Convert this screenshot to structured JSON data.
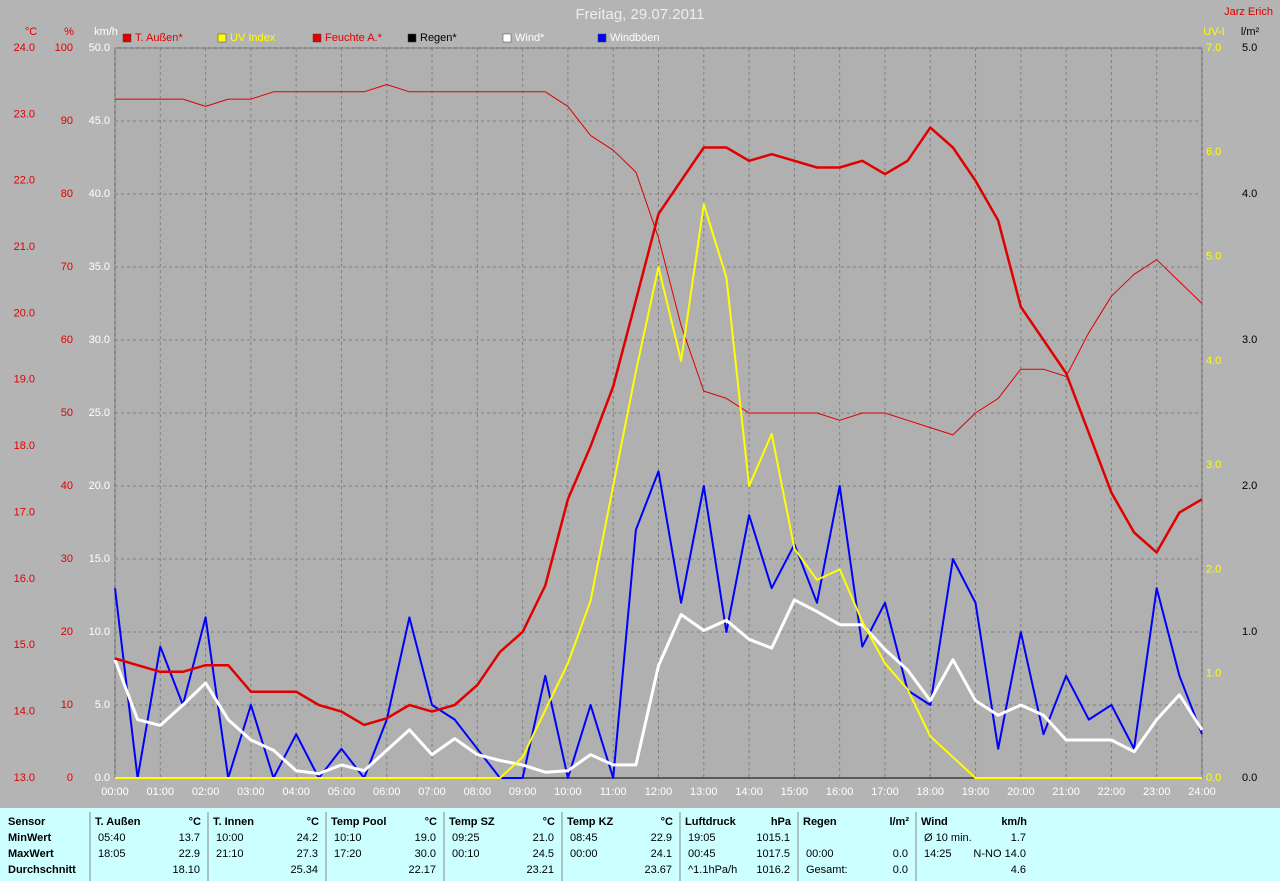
{
  "chart_data": {
    "type": "line",
    "title": "Freitag, 29.07.2011",
    "author": "Jarz Erich",
    "xlim": [
      0,
      24
    ],
    "xticks": [
      {
        "value": 0,
        "label": "00:00"
      },
      {
        "value": 1,
        "label": "01:00"
      },
      {
        "value": 2,
        "label": "02:00"
      },
      {
        "value": 3,
        "label": "03:00"
      },
      {
        "value": 4,
        "label": "04:00"
      },
      {
        "value": 5,
        "label": "05:00"
      },
      {
        "value": 6,
        "label": "06:00"
      },
      {
        "value": 7,
        "label": "07:00"
      },
      {
        "value": 8,
        "label": "08:00"
      },
      {
        "value": 9,
        "label": "09:00"
      },
      {
        "value": 10,
        "label": "10:00"
      },
      {
        "value": 11,
        "label": "11:00"
      },
      {
        "value": 12,
        "label": "12:00"
      },
      {
        "value": 13,
        "label": "13:00"
      },
      {
        "value": 14,
        "label": "14:00"
      },
      {
        "value": 15,
        "label": "15:00"
      },
      {
        "value": 16,
        "label": "16:00"
      },
      {
        "value": 17,
        "label": "17:00"
      },
      {
        "value": 18,
        "label": "18:00"
      },
      {
        "value": 19,
        "label": "19:00"
      },
      {
        "value": 20,
        "label": "20:00"
      },
      {
        "value": 21,
        "label": "21:00"
      },
      {
        "value": 22,
        "label": "22:00"
      },
      {
        "value": 23,
        "label": "23:00"
      },
      {
        "value": 24,
        "label": "24:00"
      }
    ],
    "grid": true,
    "grid_axis": 2,
    "axes": [
      {
        "label": "°C",
        "color": "#e00000",
        "side": "left",
        "lim": [
          13,
          24
        ],
        "ticks": [
          {
            "value": 13,
            "label": "13.0"
          },
          {
            "value": 14,
            "label": "14.0"
          },
          {
            "value": 15,
            "label": "15.0"
          },
          {
            "value": 16,
            "label": "16.0"
          },
          {
            "value": 17,
            "label": "17.0"
          },
          {
            "value": 18,
            "label": "18.0"
          },
          {
            "value": 19,
            "label": "19.0"
          },
          {
            "value": 20,
            "label": "20.0"
          },
          {
            "value": 21,
            "label": "21.0"
          },
          {
            "value": 22,
            "label": "22.0"
          },
          {
            "value": 23,
            "label": "23.0"
          },
          {
            "value": 24,
            "label": "24.0"
          }
        ]
      },
      {
        "label": "%",
        "color": "#e00000",
        "side": "left",
        "lim": [
          0,
          100
        ],
        "ticks": [
          0,
          10,
          20,
          30,
          40,
          50,
          60,
          70,
          80,
          90,
          100
        ]
      },
      {
        "label": "km/h",
        "color": "#ffffff",
        "side": "left",
        "lim": [
          0,
          50
        ],
        "ticks": [
          {
            "value": 0,
            "label": "0.0"
          },
          {
            "value": 5,
            "label": "5.0"
          },
          {
            "value": 10,
            "label": "10.0"
          },
          {
            "value": 15,
            "label": "15.0"
          },
          {
            "value": 20,
            "label": "20.0"
          },
          {
            "value": 25,
            "label": "25.0"
          },
          {
            "value": 30,
            "label": "30.0"
          },
          {
            "value": 35,
            "label": "35.0"
          },
          {
            "value": 40,
            "label": "40.0"
          },
          {
            "value": 45,
            "label": "45.0"
          },
          {
            "value": 50,
            "label": "50.0"
          }
        ]
      },
      {
        "label": "UV-I",
        "color": "#ffff00",
        "side": "right",
        "lim": [
          0,
          7
        ],
        "ticks": [
          {
            "value": 0,
            "label": "0.0"
          },
          {
            "value": 1,
            "label": "1.0"
          },
          {
            "value": 2,
            "label": "2.0"
          },
          {
            "value": 3,
            "label": "3.0"
          },
          {
            "value": 4,
            "label": "4.0"
          },
          {
            "value": 5,
            "label": "5.0"
          },
          {
            "value": 6,
            "label": "6.0"
          },
          {
            "value": 7,
            "label": "7.0"
          }
        ]
      },
      {
        "label": "l/m²",
        "color": "#000000",
        "side": "right",
        "lim": [
          0,
          5
        ],
        "ticks": [
          {
            "value": 0,
            "label": "0.0"
          },
          {
            "value": 1,
            "label": "1.0"
          },
          {
            "value": 2,
            "label": "2.0"
          },
          {
            "value": 3,
            "label": "3.0"
          },
          {
            "value": 4,
            "label": "4.0"
          },
          {
            "value": 5,
            "label": "5.0"
          }
        ]
      }
    ],
    "x": [
      0,
      0.5,
      1,
      1.5,
      2,
      2.5,
      3,
      3.5,
      4,
      4.5,
      5,
      5.5,
      6,
      6.5,
      7,
      7.5,
      8,
      8.5,
      9,
      9.5,
      10,
      10.5,
      11,
      11.5,
      12,
      12.5,
      13,
      13.5,
      14,
      14.5,
      15,
      15.5,
      16,
      16.5,
      17,
      17.5,
      18,
      18.5,
      19,
      19.5,
      20,
      20.5,
      21,
      21.5,
      22,
      22.5,
      23,
      23.5,
      24
    ],
    "series": [
      {
        "name": "T. Außen*",
        "color": "#e00000",
        "axis": 0,
        "line_width": 2.5,
        "values": [
          14.8,
          14.7,
          14.6,
          14.6,
          14.7,
          14.7,
          14.3,
          14.3,
          14.3,
          14.1,
          14.0,
          13.8,
          13.9,
          14.1,
          14.0,
          14.1,
          14.4,
          14.9,
          15.2,
          15.9,
          17.2,
          18.0,
          18.9,
          20.2,
          21.5,
          22.0,
          22.5,
          22.5,
          22.3,
          22.4,
          22.3,
          22.2,
          22.2,
          22.3,
          22.1,
          22.3,
          22.8,
          22.5,
          22.0,
          21.4,
          20.1,
          19.6,
          19.1,
          18.2,
          17.3,
          16.7,
          16.4,
          17.0,
          17.2
        ]
      },
      {
        "name": "UV Index",
        "color": "#ffff00",
        "axis": 3,
        "line_width": 2,
        "values": [
          0,
          0,
          0,
          0,
          0,
          0,
          0,
          0,
          0,
          0,
          0,
          0,
          0,
          0,
          0,
          0,
          0,
          0,
          0.2,
          0.65,
          1.1,
          1.7,
          2.8,
          3.9,
          4.9,
          4.0,
          5.5,
          4.8,
          2.8,
          3.3,
          2.2,
          1.9,
          2.0,
          1.5,
          1.1,
          0.85,
          0.4,
          0.2,
          0,
          0,
          0,
          0,
          0,
          0,
          0,
          0,
          0,
          0,
          0
        ]
      },
      {
        "name": "Feuchte A.*",
        "color": "#e00000",
        "axis": 1,
        "line_width": 1,
        "values": [
          93,
          93,
          93,
          93,
          92,
          93,
          93,
          94,
          94,
          94,
          94,
          94,
          95,
          94,
          94,
          94,
          94,
          94,
          94,
          94,
          92,
          88,
          86,
          83,
          74,
          62,
          53,
          52,
          50,
          50,
          50,
          50,
          49,
          50,
          50,
          49,
          48,
          47,
          50,
          52,
          56,
          56,
          55,
          61,
          66,
          69,
          71,
          68,
          65
        ]
      },
      {
        "name": "Regen*",
        "color": "#000000",
        "axis": 4,
        "line_width": 1,
        "values": [
          0,
          0,
          0,
          0,
          0,
          0,
          0,
          0,
          0,
          0,
          0,
          0,
          0,
          0,
          0,
          0,
          0,
          0,
          0,
          0,
          0,
          0,
          0,
          0,
          0,
          0,
          0,
          0,
          0,
          0,
          0,
          0,
          0,
          0,
          0,
          0,
          0,
          0,
          0,
          0,
          0,
          0,
          0,
          0,
          0,
          0,
          0,
          0,
          0
        ]
      },
      {
        "name": "Wind*",
        "color": "#ffffff",
        "axis": 2,
        "line_width": 3,
        "values": [
          8.1,
          4.0,
          3.6,
          5.0,
          6.5,
          4.0,
          2.6,
          1.9,
          0.5,
          0.3,
          0.9,
          0.5,
          1.9,
          3.3,
          1.6,
          2.7,
          1.6,
          1.2,
          0.9,
          0.4,
          0.5,
          1.6,
          0.9,
          0.9,
          7.7,
          11.2,
          10.1,
          10.8,
          9.5,
          8.9,
          12.2,
          11.4,
          10.5,
          10.5,
          8.8,
          7.4,
          5.3,
          8.1,
          5.3,
          4.3,
          5.0,
          4.3,
          2.6,
          2.6,
          2.6,
          1.8,
          4.0,
          5.7,
          3.3
        ]
      },
      {
        "name": "Windböen",
        "color": "#0000ff",
        "axis": 2,
        "line_width": 2,
        "values": [
          13,
          0,
          9,
          5,
          11,
          0,
          5,
          0,
          3,
          0,
          2,
          0,
          4,
          11,
          5,
          4,
          2,
          0,
          0,
          7,
          0,
          5,
          0,
          17,
          21,
          12,
          20,
          10,
          18,
          13,
          16,
          12,
          20,
          9,
          12,
          6,
          5,
          15,
          12,
          2,
          10,
          3,
          7,
          4,
          5,
          2,
          13,
          7,
          3
        ]
      }
    ]
  },
  "table": {
    "row_labels": [
      "Sensor",
      "MinWert",
      "MaxWert",
      "Durchschnitt"
    ],
    "columns": [
      {
        "name": "T. Außen",
        "unit": "°C",
        "rows": [
          [
            "05:40",
            "13.7"
          ],
          [
            "18:05",
            "22.9"
          ],
          [
            null,
            "18.10"
          ]
        ]
      },
      {
        "name": "T. Innen",
        "unit": "°C",
        "rows": [
          [
            "10:00",
            "24.2"
          ],
          [
            "21:10",
            "27.3"
          ],
          [
            null,
            "25.34"
          ]
        ]
      },
      {
        "name": "Temp Pool",
        "unit": "°C",
        "rows": [
          [
            "10:10",
            "19.0"
          ],
          [
            "17:20",
            "30.0"
          ],
          [
            null,
            "22.17"
          ]
        ]
      },
      {
        "name": "Temp SZ",
        "unit": "°C",
        "rows": [
          [
            "09:25",
            "21.0"
          ],
          [
            "00:10",
            "24.5"
          ],
          [
            null,
            "23.21"
          ]
        ]
      },
      {
        "name": "Temp KZ",
        "unit": "°C",
        "rows": [
          [
            "08:45",
            "22.9"
          ],
          [
            "00:00",
            "24.1"
          ],
          [
            null,
            "23.67"
          ]
        ]
      },
      {
        "name": "Luftdruck",
        "unit": "hPa",
        "rows": [
          [
            "19:05",
            "1015.1"
          ],
          [
            "00:45",
            "1017.5"
          ],
          [
            "^1.1hPa/h",
            "1016.2"
          ]
        ]
      },
      {
        "name": "Regen",
        "unit": "l/m²",
        "rows": [
          [
            null,
            null
          ],
          [
            "00:00",
            "0.0"
          ],
          [
            "Gesamt:",
            "0.0"
          ]
        ]
      },
      {
        "name": "Wind",
        "unit": "km/h",
        "rows": [
          [
            "Ø 10 min.",
            "1.7"
          ],
          [
            "14:25",
            "N-NO 14.0"
          ],
          [
            null,
            "4.6"
          ]
        ]
      }
    ]
  }
}
